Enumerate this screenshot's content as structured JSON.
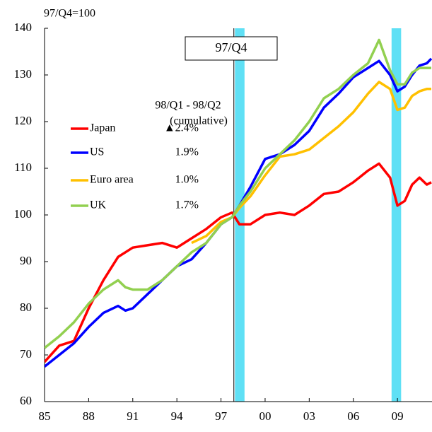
{
  "chart_data": {
    "type": "line",
    "y_label": "97/Q4=100",
    "x": [
      1985,
      1986,
      1987,
      1988,
      1989,
      1990,
      1990.5,
      1991,
      1992,
      1993,
      1994,
      1995,
      1996,
      1997,
      1997.75,
      1998.25,
      1999,
      2000,
      2001,
      2002,
      2003,
      2004,
      2005,
      2006,
      2007,
      2007.75,
      2008.5,
      2009,
      2009.5,
      2010,
      2010.5,
      2011,
      2011.3
    ],
    "series": [
      {
        "name": "Japan",
        "color": "#ff0000",
        "legend_value": "▲2.4%",
        "values": [
          68.5,
          72,
          73,
          80,
          86,
          91,
          92,
          93,
          93.5,
          94,
          93,
          95,
          97,
          99.5,
          100.5,
          98,
          98,
          100,
          100.5,
          100,
          102,
          104.5,
          105,
          107,
          109.5,
          111,
          108,
          102,
          103,
          106.5,
          108,
          106.5,
          107
        ]
      },
      {
        "name": "US",
        "color": "#0000ff",
        "legend_value": "1.9%",
        "values": [
          67.5,
          70,
          72.5,
          76,
          79,
          80.5,
          79.5,
          80,
          83,
          86,
          89,
          90.5,
          94,
          98,
          99.5,
          102,
          106,
          112,
          113,
          115,
          118,
          123,
          126,
          129.5,
          131.5,
          133,
          130,
          126.5,
          127.5,
          130,
          132,
          132.5,
          133.5
        ]
      },
      {
        "name": "Euro area",
        "color": "#ffc000",
        "legend_value": "1.0%",
        "values": [
          null,
          null,
          null,
          null,
          null,
          null,
          null,
          null,
          null,
          null,
          null,
          94,
          95.5,
          98.5,
          99.5,
          101.5,
          104,
          108.5,
          112.5,
          113,
          114,
          116.5,
          119,
          122,
          126,
          128.5,
          127,
          122.5,
          123,
          125.5,
          126.5,
          127,
          127
        ]
      },
      {
        "name": "UK",
        "color": "#92d050",
        "legend_value": "1.7%",
        "values": [
          71.5,
          74,
          77,
          81,
          84,
          86,
          84.5,
          84,
          84,
          86,
          89,
          92,
          94,
          98,
          99.5,
          102,
          105,
          110,
          113,
          116,
          120,
          125,
          127,
          130,
          132.5,
          137.5,
          131,
          128,
          128,
          130.5,
          131.5,
          131.5,
          131.5
        ]
      }
    ],
    "legend_title": [
      "98/Q1 - 98/Q2",
      "(cumulative)"
    ],
    "reference_line": {
      "x": 1997.875,
      "label": "97/Q4"
    },
    "shaded_periods": [
      [
        1997.95,
        1998.6
      ],
      [
        2008.6,
        2009.25
      ]
    ],
    "shade_color": "#5fe0f5",
    "xlim": [
      1985,
      2011.35
    ],
    "xticks": [
      {
        "value": 1985,
        "label": "85"
      },
      {
        "value": 1988,
        "label": "88"
      },
      {
        "value": 1991,
        "label": "91"
      },
      {
        "value": 1994,
        "label": "94"
      },
      {
        "value": 1997,
        "label": "97"
      },
      {
        "value": 2000,
        "label": "00"
      },
      {
        "value": 2003,
        "label": "03"
      },
      {
        "value": 2006,
        "label": "06"
      },
      {
        "value": 2009,
        "label": "09"
      }
    ],
    "ylim": [
      60,
      140
    ],
    "yticks": [
      60,
      70,
      80,
      90,
      100,
      110,
      120,
      130,
      140
    ]
  }
}
